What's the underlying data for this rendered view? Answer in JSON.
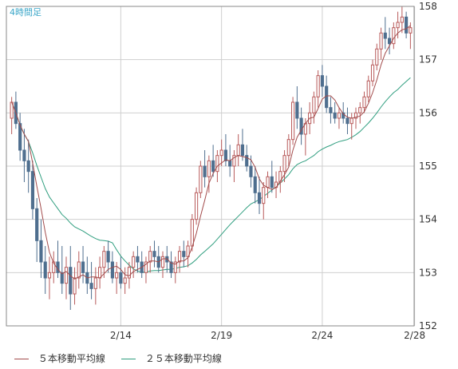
{
  "chart_data": {
    "type": "candlestick",
    "title": "4時間足",
    "ylim": [
      152,
      158
    ],
    "y_ticks": [
      "152",
      "153",
      "154",
      "155",
      "156",
      "157",
      "158"
    ],
    "x_labels": [
      {
        "label": "2/14",
        "index": 26
      },
      {
        "label": "2/19",
        "index": 50
      },
      {
        "label": "2/24",
        "index": 74
      },
      {
        "label": "2/28",
        "index": 96
      }
    ],
    "grid": true,
    "legend": "bottom",
    "colors": {
      "up": "#b85a5a",
      "down": "#4f6f8f",
      "ma5": "#a24b4b",
      "ma25": "#2f9e7f",
      "grid": "#cfcfcf",
      "title": "#3aa6c8"
    },
    "ohlc": [
      [
        155.9,
        156.3,
        155.6,
        156.2
      ],
      [
        156.2,
        156.4,
        155.7,
        155.8
      ],
      [
        155.8,
        156.0,
        155.1,
        155.3
      ],
      [
        155.3,
        155.7,
        154.7,
        155.1
      ],
      [
        155.1,
        155.5,
        154.5,
        154.9
      ],
      [
        154.9,
        155.1,
        154.0,
        154.2
      ],
      [
        154.2,
        154.4,
        153.2,
        153.6
      ],
      [
        153.6,
        154.0,
        152.9,
        153.2
      ],
      [
        153.2,
        153.5,
        152.6,
        152.9
      ],
      [
        152.9,
        153.3,
        152.5,
        153.0
      ],
      [
        153.0,
        153.4,
        152.8,
        153.2
      ],
      [
        153.2,
        153.6,
        152.9,
        153.0
      ],
      [
        153.0,
        153.5,
        152.6,
        152.8
      ],
      [
        152.8,
        153.3,
        152.5,
        153.1
      ],
      [
        153.1,
        153.5,
        152.3,
        152.6
      ],
      [
        152.6,
        153.1,
        152.4,
        152.9
      ],
      [
        152.9,
        153.4,
        152.7,
        153.2
      ],
      [
        153.2,
        153.5,
        152.8,
        153.0
      ],
      [
        153.0,
        153.3,
        152.6,
        152.8
      ],
      [
        152.8,
        153.2,
        152.5,
        152.7
      ],
      [
        152.7,
        153.1,
        152.4,
        152.9
      ],
      [
        152.9,
        153.3,
        152.7,
        153.1
      ],
      [
        153.1,
        153.5,
        152.9,
        153.4
      ],
      [
        153.4,
        153.6,
        153.0,
        153.2
      ],
      [
        153.2,
        153.4,
        152.8,
        152.9
      ],
      [
        152.9,
        153.2,
        152.6,
        153.0
      ],
      [
        153.0,
        153.3,
        152.7,
        152.8
      ],
      [
        152.8,
        153.1,
        152.6,
        152.9
      ],
      [
        152.9,
        153.2,
        152.7,
        153.1
      ],
      [
        153.1,
        153.4,
        152.9,
        153.3
      ],
      [
        153.3,
        153.5,
        153.0,
        153.2
      ],
      [
        153.2,
        153.4,
        152.9,
        153.0
      ],
      [
        153.0,
        153.3,
        152.8,
        153.2
      ],
      [
        153.2,
        153.5,
        153.0,
        153.4
      ],
      [
        153.4,
        153.6,
        153.1,
        153.3
      ],
      [
        153.3,
        153.5,
        153.0,
        153.1
      ],
      [
        153.1,
        153.4,
        152.9,
        153.3
      ],
      [
        153.3,
        153.5,
        153.0,
        153.2
      ],
      [
        153.2,
        153.4,
        152.9,
        153.0
      ],
      [
        153.0,
        153.3,
        152.8,
        153.2
      ],
      [
        153.2,
        153.5,
        153.0,
        153.4
      ],
      [
        153.4,
        153.6,
        153.1,
        153.3
      ],
      [
        153.3,
        153.6,
        153.1,
        153.5
      ],
      [
        153.5,
        154.1,
        153.4,
        154.0
      ],
      [
        154.0,
        154.6,
        153.9,
        154.5
      ],
      [
        154.5,
        155.1,
        154.4,
        155.0
      ],
      [
        155.0,
        155.3,
        154.6,
        154.8
      ],
      [
        154.8,
        155.2,
        154.5,
        155.1
      ],
      [
        155.1,
        155.4,
        154.8,
        154.9
      ],
      [
        154.9,
        155.3,
        154.7,
        155.2
      ],
      [
        155.2,
        155.5,
        155.0,
        155.3
      ],
      [
        155.3,
        155.6,
        155.0,
        155.1
      ],
      [
        155.1,
        155.4,
        154.8,
        155.0
      ],
      [
        155.0,
        155.3,
        154.7,
        155.2
      ],
      [
        155.2,
        155.6,
        155.0,
        155.4
      ],
      [
        155.4,
        155.7,
        155.1,
        155.2
      ],
      [
        155.2,
        155.4,
        154.9,
        155.0
      ],
      [
        155.0,
        155.2,
        154.6,
        154.8
      ],
      [
        154.8,
        155.0,
        154.3,
        154.5
      ],
      [
        154.5,
        154.8,
        154.1,
        154.3
      ],
      [
        154.3,
        154.7,
        154.0,
        154.6
      ],
      [
        154.6,
        154.9,
        154.4,
        154.8
      ],
      [
        154.8,
        155.1,
        154.5,
        154.6
      ],
      [
        154.6,
        154.9,
        154.4,
        154.7
      ],
      [
        154.7,
        155.0,
        154.5,
        154.9
      ],
      [
        154.9,
        155.3,
        154.7,
        155.2
      ],
      [
        155.2,
        155.6,
        155.0,
        155.5
      ],
      [
        155.5,
        156.3,
        155.4,
        156.2
      ],
      [
        156.2,
        156.5,
        155.7,
        155.9
      ],
      [
        155.9,
        156.1,
        155.4,
        155.6
      ],
      [
        155.6,
        155.9,
        155.2,
        155.8
      ],
      [
        155.8,
        156.2,
        155.6,
        156.0
      ],
      [
        156.0,
        156.4,
        155.8,
        156.3
      ],
      [
        156.3,
        156.8,
        156.1,
        156.7
      ],
      [
        156.7,
        156.9,
        156.3,
        156.5
      ],
      [
        156.5,
        156.7,
        156.0,
        156.1
      ],
      [
        156.1,
        156.3,
        155.8,
        156.0
      ],
      [
        156.0,
        156.2,
        155.8,
        155.9
      ],
      [
        155.9,
        156.1,
        155.7,
        156.0
      ],
      [
        156.0,
        156.2,
        155.8,
        155.9
      ],
      [
        155.9,
        156.1,
        155.6,
        155.8
      ],
      [
        155.8,
        156.0,
        155.5,
        155.9
      ],
      [
        155.9,
        156.1,
        155.7,
        156.0
      ],
      [
        156.0,
        156.2,
        155.8,
        156.1
      ],
      [
        156.1,
        156.4,
        156.0,
        156.3
      ],
      [
        156.3,
        156.7,
        156.2,
        156.6
      ],
      [
        156.6,
        157.0,
        156.5,
        156.9
      ],
      [
        156.9,
        157.3,
        156.8,
        157.2
      ],
      [
        157.2,
        157.6,
        157.0,
        157.5
      ],
      [
        157.5,
        157.8,
        157.2,
        157.4
      ],
      [
        157.4,
        157.6,
        157.1,
        157.3
      ],
      [
        157.3,
        157.7,
        157.2,
        157.6
      ],
      [
        157.6,
        157.9,
        157.4,
        157.7
      ],
      [
        157.7,
        158.0,
        157.5,
        157.8
      ],
      [
        157.8,
        157.9,
        157.4,
        157.5
      ],
      [
        157.5,
        157.7,
        157.2,
        157.6
      ]
    ],
    "ma5": [],
    "ma25": [],
    "series": [
      {
        "name": "５本移動平均線",
        "color": "#a24b4b"
      },
      {
        "name": "２５本移動平均線",
        "color": "#2f9e7f"
      }
    ]
  }
}
